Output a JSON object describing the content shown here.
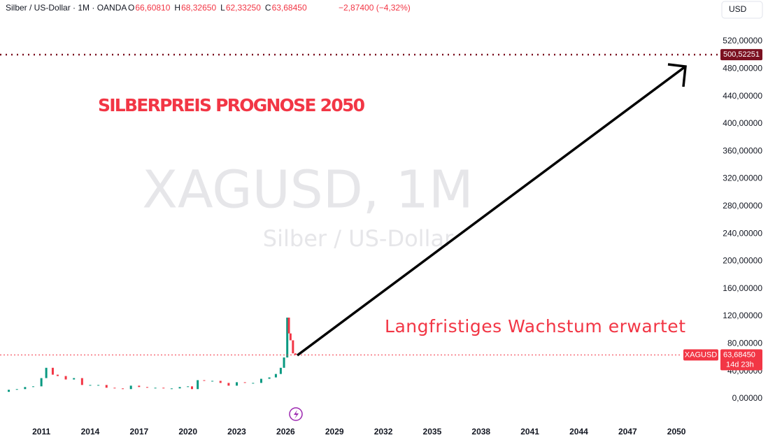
{
  "header": {
    "symbol": "Silber / US-Dollar · 1M · OANDA",
    "ohlc": [
      {
        "key": "O",
        "value": "66,60810"
      },
      {
        "key": "H",
        "value": "68,32650"
      },
      {
        "key": "L",
        "value": "62,33250"
      },
      {
        "key": "C",
        "value": "63,68450"
      }
    ],
    "change": "−2,87400 (−4,32%)",
    "currency": "USD"
  },
  "chart_data": {
    "type": "candlestick",
    "watermark": "XAGUSD, 1M",
    "watermark_subtitle": "Silber / US-Dollar",
    "annotations": [
      "SILBERPREIS PROGNOSE 2050",
      "Langfristiges Wachstum erwartet"
    ],
    "series": [
      {
        "name": "XAGUSD",
        "up_color": "#089981",
        "down_color": "#f23645",
        "x": [
          2008.5,
          2009,
          2009.5,
          2010,
          2010.5,
          2011,
          2011.3,
          2011.7,
          2012,
          2012.5,
          2013,
          2013.5,
          2014,
          2014.5,
          2015,
          2015.5,
          2016,
          2016.5,
          2017,
          2017.5,
          2018,
          2018.5,
          2019,
          2019.5,
          2020,
          2020.25,
          2020.6,
          2021,
          2021.5,
          2022,
          2022.5,
          2023,
          2023.5,
          2024,
          2024.5,
          2025,
          2025.4,
          2025.7,
          2025.9,
          2026.1,
          2026.2,
          2026.3,
          2026.45,
          2026.6
        ],
        "values": [
          10,
          13,
          14,
          17,
          18,
          30,
          45,
          35,
          33,
          28,
          30,
          20,
          20,
          20,
          16,
          15,
          14,
          19,
          17,
          16,
          16,
          15,
          15,
          17,
          18,
          14,
          27,
          26,
          26,
          23,
          19,
          24,
          23,
          23,
          29,
          31,
          36,
          45,
          60,
          118,
          95,
          85,
          66,
          63.6845
        ]
      }
    ],
    "xlim": [
      2008.46,
      2052.7
    ],
    "ylim": [
      0,
      580
    ],
    "xticks": [
      2011,
      2014,
      2017,
      2020,
      2023,
      2026,
      2029,
      2032,
      2035,
      2038,
      2041,
      2044,
      2047,
      2050
    ],
    "yticks": [
      {
        "value": 0,
        "label": "0,00000"
      },
      {
        "value": 40,
        "label": "40,00000"
      },
      {
        "value": 80,
        "label": "80,00000"
      },
      {
        "value": 120,
        "label": "120,00000"
      },
      {
        "value": 160,
        "label": "160,00000"
      },
      {
        "value": 200,
        "label": "200,00000"
      },
      {
        "value": 240,
        "label": "240,00000"
      },
      {
        "value": 280,
        "label": "280,00000"
      },
      {
        "value": 320,
        "label": "320,00000"
      },
      {
        "value": 360,
        "label": "360,00000"
      },
      {
        "value": 400,
        "label": "400,00000"
      },
      {
        "value": 440,
        "label": "440,00000"
      },
      {
        "value": 480,
        "label": "480,00000"
      },
      {
        "value": 520,
        "label": "520,00000"
      }
    ],
    "grid": true,
    "price_lines": [
      {
        "value": 500.52251,
        "label": "500,52251",
        "color": "#7b1020"
      },
      {
        "value": 63.6845,
        "label": "63,68450",
        "symbol": "XAGUSD",
        "countdown": "14d 23h",
        "color": "#f23645"
      }
    ]
  }
}
